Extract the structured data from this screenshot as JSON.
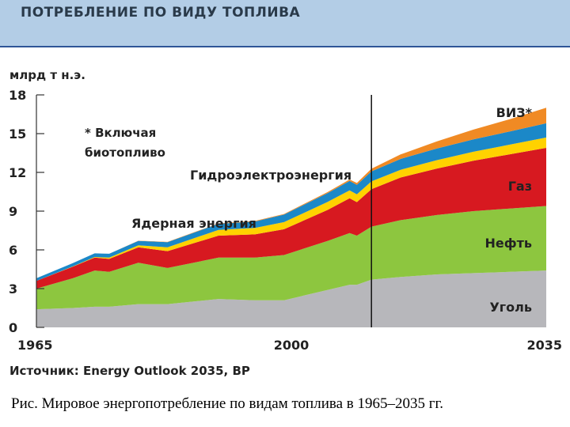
{
  "header": {
    "title": "ПОТРЕБЛЕНИЕ ПО ВИДУ ТОПЛИВА"
  },
  "source": "Источник: Energy Outlook 2035, BP",
  "caption": "Рис. Мировое энергопотребление по видам топлива в 1965–2035 гг.",
  "colors": {
    "coal": "#b7b7bb",
    "oil": "#8dc63f",
    "gas": "#d71920",
    "nuclear": "#ffd200",
    "hydro": "#1b88c8",
    "renewables": "#f08a24",
    "header_band": "#b3cde6"
  },
  "chart_data": {
    "type": "area",
    "stacked": true,
    "title": "ПОТРЕБЛЕНИЕ ПО ВИДУ ТОПЛИВА",
    "ylabel": "млрд т н.э.",
    "xlabel": "",
    "xlim": [
      1965,
      2035
    ],
    "ylim": [
      0,
      18
    ],
    "yticks": [
      0,
      3,
      6,
      9,
      12,
      15,
      18
    ],
    "xticks": [
      1965,
      2000,
      2035
    ],
    "projection_divider_year": 2011,
    "grid": false,
    "x": [
      1965,
      1970,
      1973,
      1975,
      1979,
      1983,
      1990,
      1995,
      1999,
      2005,
      2008,
      2009,
      2011,
      2015,
      2020,
      2025,
      2030,
      2035
    ],
    "series": [
      {
        "name": "Уголь",
        "color_key": "coal",
        "values": [
          1.4,
          1.5,
          1.6,
          1.6,
          1.8,
          1.8,
          2.2,
          2.1,
          2.1,
          2.9,
          3.3,
          3.3,
          3.7,
          3.9,
          4.1,
          4.2,
          4.3,
          4.4
        ]
      },
      {
        "name": "Нефть",
        "color_key": "oil",
        "values": [
          1.6,
          2.3,
          2.8,
          2.7,
          3.2,
          2.8,
          3.2,
          3.3,
          3.5,
          3.8,
          4.0,
          3.8,
          4.1,
          4.4,
          4.6,
          4.8,
          4.9,
          5.0
        ]
      },
      {
        "name": "Газ",
        "color_key": "gas",
        "values": [
          0.6,
          0.9,
          1.0,
          1.0,
          1.2,
          1.3,
          1.7,
          1.8,
          2.0,
          2.4,
          2.7,
          2.6,
          2.9,
          3.3,
          3.6,
          3.9,
          4.2,
          4.5
        ]
      },
      {
        "name": "Ядерная энергия",
        "color_key": "nuclear",
        "values": [
          0.0,
          0.02,
          0.05,
          0.1,
          0.15,
          0.3,
          0.45,
          0.5,
          0.55,
          0.62,
          0.61,
          0.6,
          0.6,
          0.6,
          0.65,
          0.7,
          0.75,
          0.8
        ]
      },
      {
        "name": "Гидроэлектроэнергия",
        "color_key": "hydro",
        "values": [
          0.2,
          0.25,
          0.28,
          0.3,
          0.35,
          0.4,
          0.47,
          0.5,
          0.58,
          0.68,
          0.72,
          0.74,
          0.78,
          0.84,
          0.9,
          0.96,
          1.02,
          1.1
        ]
      },
      {
        "name": "ВИЗ*",
        "color_key": "renewables",
        "values": [
          0.0,
          0.0,
          0.0,
          0.0,
          0.01,
          0.02,
          0.03,
          0.04,
          0.05,
          0.08,
          0.12,
          0.14,
          0.2,
          0.35,
          0.55,
          0.75,
          0.95,
          1.2
        ]
      }
    ],
    "annotations": {
      "footnote_line1": "* Включая",
      "footnote_line2": "биотопливо"
    }
  }
}
